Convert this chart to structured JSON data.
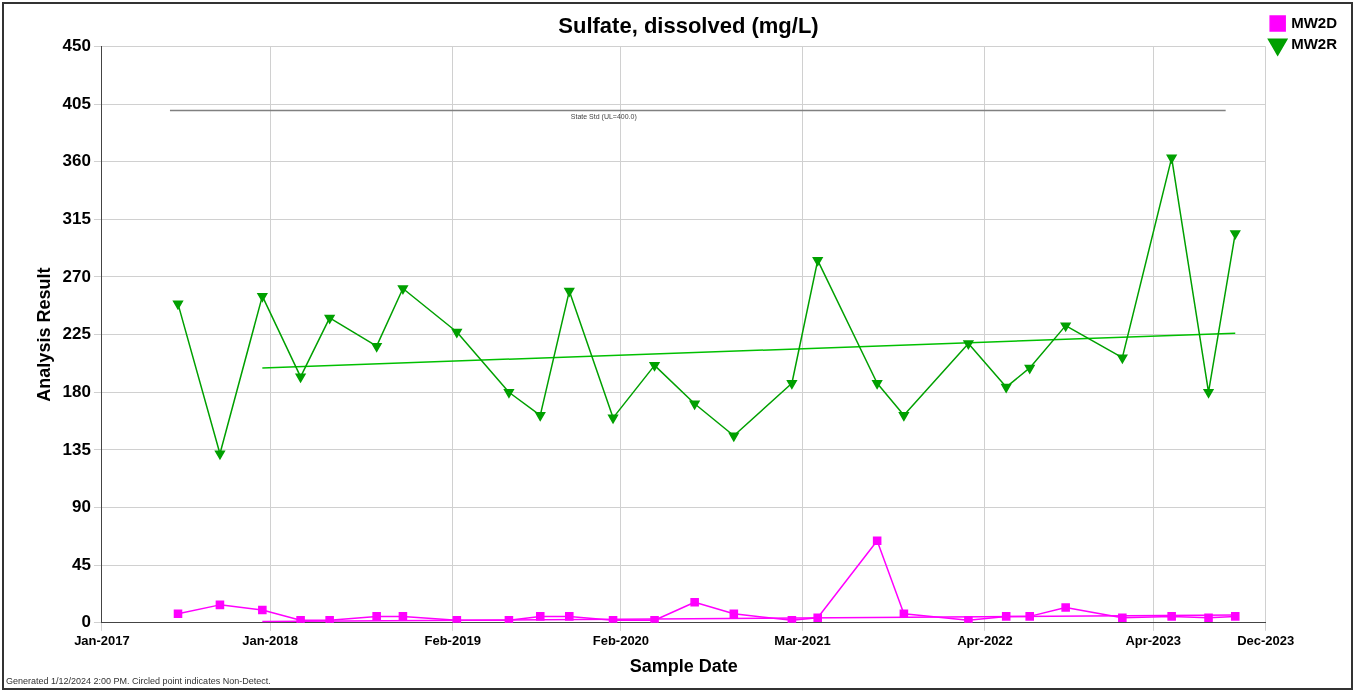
{
  "chart_data": {
    "type": "line",
    "title": "Sulfate, dissolved (mg/L)",
    "xlabel": "Sample Date",
    "ylabel": "Analysis Result",
    "xlim": [
      "2017-01-01",
      "2023-12-01"
    ],
    "xticks": [
      {
        "value": "2017-01-01",
        "label": "Jan-2017"
      },
      {
        "value": "2018-01-01",
        "label": "Jan-2018"
      },
      {
        "value": "2019-02-01",
        "label": "Feb-2019"
      },
      {
        "value": "2020-02-01",
        "label": "Feb-2020"
      },
      {
        "value": "2021-03-01",
        "label": "Mar-2021"
      },
      {
        "value": "2022-04-01",
        "label": "Apr-2022"
      },
      {
        "value": "2023-04-01",
        "label": "Apr-2023"
      },
      {
        "value": "2023-12-01",
        "label": "Dec-2023"
      }
    ],
    "ylim": [
      0,
      450
    ],
    "yticks": [
      0,
      45,
      90,
      135,
      180,
      225,
      270,
      315,
      360,
      405,
      450
    ],
    "grid": true,
    "legend": "top right",
    "series": [
      {
        "name": "MW2D",
        "color": "#ff00ff",
        "marker": "square",
        "x": [
          "2017-06-15",
          "2017-09-14",
          "2017-12-15",
          "2018-03-08",
          "2018-05-10",
          "2018-08-20",
          "2018-10-16",
          "2019-02-10",
          "2019-06-03",
          "2019-08-10",
          "2019-10-12",
          "2020-01-15",
          "2020-04-14",
          "2020-07-10",
          "2020-10-03",
          "2021-02-06",
          "2021-04-03",
          "2021-08-10",
          "2021-10-07",
          "2022-02-24",
          "2022-05-17",
          "2022-07-07",
          "2022-09-23",
          "2023-01-24",
          "2023-05-11",
          "2023-07-30",
          "2023-09-26"
        ],
        "values": [
          7,
          14,
          10,
          2,
          2,
          5,
          5,
          2,
          2,
          5,
          5,
          2,
          2,
          16,
          7,
          2,
          4,
          64,
          7,
          2,
          5,
          5,
          12,
          4,
          5,
          4,
          5
        ]
      },
      {
        "name": "MW2R",
        "color": "#00a000",
        "marker": "triangle",
        "x": [
          "2017-06-15",
          "2017-09-14",
          "2017-12-15",
          "2018-03-08",
          "2018-05-10",
          "2018-08-20",
          "2018-10-16",
          "2019-02-10",
          "2019-06-03",
          "2019-08-10",
          "2019-10-12",
          "2020-01-15",
          "2020-04-14",
          "2020-07-10",
          "2020-10-03",
          "2021-02-06",
          "2021-04-03",
          "2021-08-10",
          "2021-10-07",
          "2022-02-24",
          "2022-05-17",
          "2022-07-07",
          "2022-09-23",
          "2023-01-24",
          "2023-05-11",
          "2023-07-30",
          "2023-09-26"
        ],
        "values": [
          249,
          132,
          255,
          192,
          238,
          216,
          261,
          227,
          180,
          162,
          259,
          160,
          201,
          171,
          146,
          187,
          283,
          187,
          162,
          218,
          184,
          199,
          232,
          207,
          363,
          180,
          304
        ]
      },
      {
        "color": "#ff00ff",
        "marker": "none",
        "x": [
          "2017-12-15",
          "2023-09-26"
        ],
        "values": [
          1,
          6
        ]
      },
      {
        "color": "#00c000",
        "marker": "none",
        "x": [
          "2017-12-15",
          "2023-09-26"
        ],
        "values": [
          199,
          226
        ]
      }
    ],
    "ref_lines": [
      {
        "axis": "y",
        "value": 400,
        "label": "State Std (UL=400.0)",
        "color": "#808080"
      }
    ],
    "annotations": [
      "Generated 1/12/2024 2:00 PM. Circled point indicates Non-Detect."
    ]
  }
}
